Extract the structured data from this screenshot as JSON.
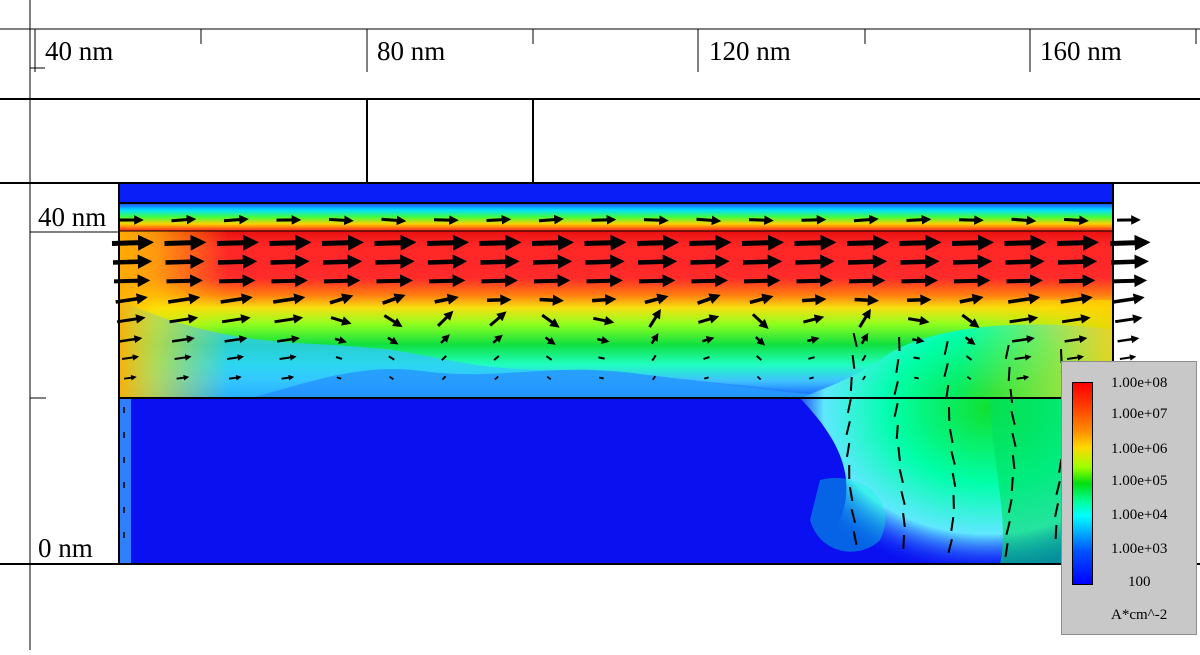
{
  "x_axis": {
    "tick_labels": [
      "40 nm",
      "80 nm",
      "120 nm",
      "160 nm"
    ]
  },
  "y_axis": {
    "tick_labels": [
      "40 nm",
      "0 nm"
    ]
  },
  "legend": {
    "ticks": [
      "1.00e+08",
      "1.00e+07",
      "1.00e+06",
      "1.00e+05",
      "1.00e+04",
      "1.00e+03",
      "100"
    ],
    "unit": "A*cm^-2",
    "colors": [
      "#ff0000",
      "#ff8c00",
      "#ffd800",
      "#00dd10",
      "#00ffff",
      "#0050ff",
      "#0000ff"
    ]
  },
  "field": {
    "scale": "log",
    "min": 100,
    "max": 100000000,
    "unit": "A*cm^-2"
  }
}
